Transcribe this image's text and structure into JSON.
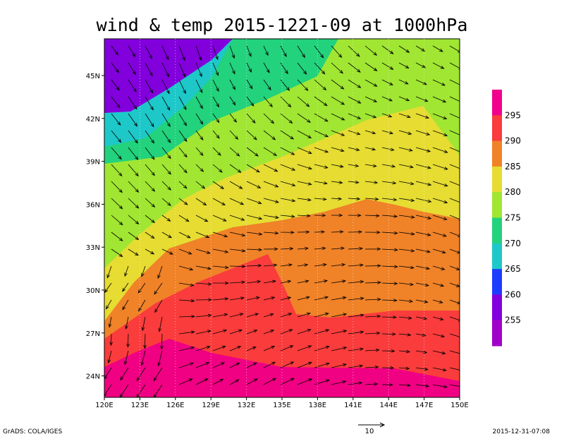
{
  "title": "wind & temp 2015-1221-09 at 1000hPa",
  "x_ticks": [
    "120E",
    "123E",
    "126E",
    "129E",
    "132E",
    "135E",
    "138E",
    "141E",
    "144E",
    "147E",
    "150E"
  ],
  "y_ticks": [
    "45N",
    "42N",
    "39N",
    "36N",
    "33N",
    "30N",
    "27N",
    "24N"
  ],
  "colorbar": {
    "levels": [
      295,
      290,
      285,
      280,
      275,
      270,
      265,
      260,
      255
    ]
  },
  "reference_vector_label": 10,
  "footer_left": "GrADS: COLA/IGES",
  "footer_right": "2015-12-31-07:08"
}
